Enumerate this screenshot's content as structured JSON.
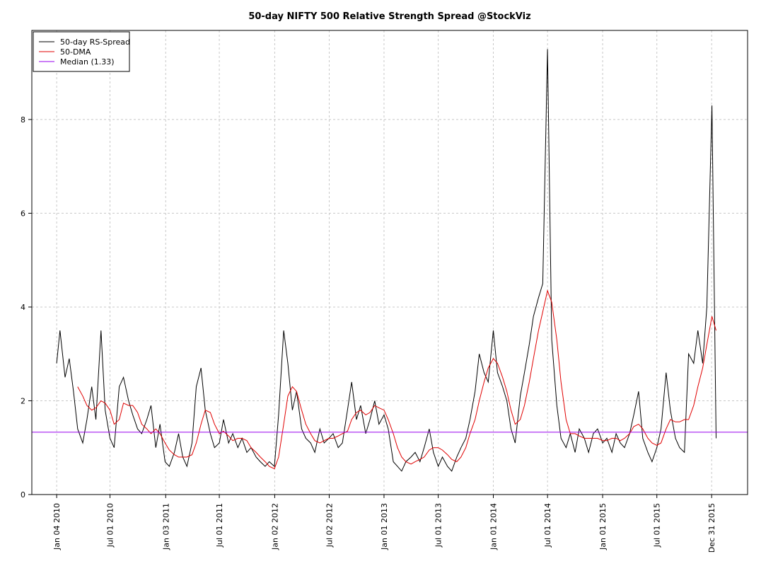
{
  "chart_data": {
    "type": "line",
    "title": "50-day NIFTY 500 Relative Strength Spread @StockViz",
    "x": [
      "2010-01-04",
      "2010-01-15",
      "2010-02-01",
      "2010-02-15",
      "2010-03-01",
      "2010-03-15",
      "2010-04-01",
      "2010-04-15",
      "2010-05-01",
      "2010-05-15",
      "2010-06-01",
      "2010-06-15",
      "2010-07-01",
      "2010-07-15",
      "2010-08-01",
      "2010-08-15",
      "2010-09-01",
      "2010-09-15",
      "2010-10-01",
      "2010-10-15",
      "2010-11-01",
      "2010-11-15",
      "2010-12-01",
      "2010-12-15",
      "2011-01-01",
      "2011-01-15",
      "2011-02-01",
      "2011-02-15",
      "2011-03-01",
      "2011-03-15",
      "2011-04-01",
      "2011-04-15",
      "2011-05-01",
      "2011-05-15",
      "2011-06-01",
      "2011-06-15",
      "2011-07-01",
      "2011-07-15",
      "2011-08-01",
      "2011-08-15",
      "2011-09-01",
      "2011-09-15",
      "2011-10-01",
      "2011-10-15",
      "2011-11-01",
      "2011-11-15",
      "2011-12-01",
      "2011-12-15",
      "2012-01-01",
      "2012-01-15",
      "2012-02-01",
      "2012-02-15",
      "2012-03-01",
      "2012-03-15",
      "2012-04-01",
      "2012-04-15",
      "2012-05-01",
      "2012-05-15",
      "2012-06-01",
      "2012-06-15",
      "2012-07-01",
      "2012-07-15",
      "2012-08-01",
      "2012-08-15",
      "2012-09-01",
      "2012-09-15",
      "2012-10-01",
      "2012-10-15",
      "2012-11-01",
      "2012-11-15",
      "2012-12-01",
      "2012-12-15",
      "2013-01-01",
      "2013-01-15",
      "2013-02-01",
      "2013-02-15",
      "2013-03-01",
      "2013-03-15",
      "2013-04-01",
      "2013-04-15",
      "2013-05-01",
      "2013-05-15",
      "2013-06-01",
      "2013-06-15",
      "2013-07-01",
      "2013-07-15",
      "2013-08-01",
      "2013-08-15",
      "2013-09-01",
      "2013-09-15",
      "2013-10-01",
      "2013-10-15",
      "2013-11-01",
      "2013-11-15",
      "2013-12-01",
      "2013-12-15",
      "2014-01-01",
      "2014-01-15",
      "2014-02-01",
      "2014-02-15",
      "2014-03-01",
      "2014-03-15",
      "2014-04-01",
      "2014-04-15",
      "2014-05-01",
      "2014-05-15",
      "2014-06-01",
      "2014-06-15",
      "2014-07-01",
      "2014-07-15",
      "2014-08-01",
      "2014-08-15",
      "2014-09-01",
      "2014-09-15",
      "2014-10-01",
      "2014-10-15",
      "2014-11-01",
      "2014-11-15",
      "2014-12-01",
      "2014-12-15",
      "2015-01-01",
      "2015-01-15",
      "2015-02-01",
      "2015-02-15",
      "2015-03-01",
      "2015-03-15",
      "2015-04-01",
      "2015-04-15",
      "2015-05-01",
      "2015-05-15",
      "2015-06-01",
      "2015-06-15",
      "2015-07-01",
      "2015-07-15",
      "2015-08-01",
      "2015-08-15",
      "2015-09-01",
      "2015-09-15",
      "2015-10-01",
      "2015-10-15",
      "2015-11-01",
      "2015-11-15",
      "2015-12-01",
      "2015-12-15",
      "2016-01-01",
      "2016-01-15"
    ],
    "series": [
      {
        "name": "50-day RS-Spread",
        "color": "#000000",
        "values": [
          2.8,
          3.5,
          2.5,
          2.9,
          2.2,
          1.4,
          1.1,
          1.6,
          2.3,
          1.6,
          3.5,
          1.8,
          1.2,
          1.0,
          2.3,
          2.5,
          2.0,
          1.7,
          1.4,
          1.3,
          1.6,
          1.9,
          1.0,
          1.5,
          0.7,
          0.6,
          0.9,
          1.3,
          0.8,
          0.6,
          1.1,
          2.3,
          2.7,
          1.8,
          1.3,
          1.0,
          1.1,
          1.6,
          1.1,
          1.3,
          1.0,
          1.2,
          0.9,
          1.0,
          0.8,
          0.7,
          0.6,
          0.7,
          0.6,
          1.7,
          3.5,
          2.8,
          1.8,
          2.2,
          1.4,
          1.2,
          1.1,
          0.9,
          1.4,
          1.1,
          1.2,
          1.3,
          1.0,
          1.1,
          1.8,
          2.4,
          1.6,
          1.9,
          1.3,
          1.6,
          2.0,
          1.5,
          1.7,
          1.4,
          0.7,
          0.6,
          0.5,
          0.7,
          0.8,
          0.9,
          0.7,
          1.0,
          1.4,
          0.9,
          0.6,
          0.8,
          0.6,
          0.5,
          0.8,
          1.0,
          1.2,
          1.6,
          2.2,
          3.0,
          2.6,
          2.4,
          3.5,
          2.6,
          2.3,
          2.0,
          1.4,
          1.1,
          2.1,
          2.6,
          3.2,
          3.8,
          4.2,
          4.5,
          9.5,
          3.3,
          1.9,
          1.2,
          1.0,
          1.3,
          0.9,
          1.4,
          1.2,
          0.9,
          1.3,
          1.4,
          1.1,
          1.2,
          0.9,
          1.3,
          1.1,
          1.0,
          1.3,
          1.7,
          2.2,
          1.2,
          0.9,
          0.7,
          1.0,
          1.4,
          2.6,
          1.8,
          1.2,
          1.0,
          0.9,
          3.0,
          2.8,
          3.5,
          2.8,
          4.0,
          8.3,
          1.2
        ]
      },
      {
        "name": "50-DMA",
        "color": "#e00000",
        "values": [
          null,
          null,
          null,
          null,
          null,
          2.3,
          2.1,
          1.9,
          1.8,
          1.85,
          2.0,
          1.95,
          1.8,
          1.5,
          1.6,
          1.95,
          1.9,
          1.9,
          1.75,
          1.5,
          1.4,
          1.3,
          1.4,
          1.3,
          1.1,
          0.95,
          0.85,
          0.8,
          0.8,
          0.8,
          0.85,
          1.1,
          1.5,
          1.8,
          1.75,
          1.5,
          1.3,
          1.35,
          1.25,
          1.15,
          1.2,
          1.2,
          1.15,
          1.0,
          0.9,
          0.8,
          0.7,
          0.6,
          0.55,
          0.8,
          1.5,
          2.1,
          2.3,
          2.2,
          1.8,
          1.5,
          1.3,
          1.15,
          1.1,
          1.15,
          1.2,
          1.2,
          1.25,
          1.3,
          1.35,
          1.6,
          1.75,
          1.8,
          1.7,
          1.75,
          1.9,
          1.85,
          1.8,
          1.6,
          1.3,
          1.0,
          0.8,
          0.7,
          0.65,
          0.7,
          0.75,
          0.8,
          0.95,
          1.0,
          1.0,
          0.95,
          0.85,
          0.75,
          0.7,
          0.8,
          1.0,
          1.3,
          1.6,
          2.0,
          2.4,
          2.7,
          2.9,
          2.8,
          2.5,
          2.2,
          1.8,
          1.5,
          1.6,
          1.9,
          2.4,
          2.9,
          3.5,
          3.9,
          4.35,
          4.1,
          3.3,
          2.4,
          1.6,
          1.3,
          1.3,
          1.25,
          1.2,
          1.2,
          1.2,
          1.2,
          1.15,
          1.15,
          1.2,
          1.2,
          1.15,
          1.2,
          1.3,
          1.45,
          1.5,
          1.4,
          1.2,
          1.1,
          1.05,
          1.1,
          1.4,
          1.6,
          1.55,
          1.55,
          1.6,
          1.6,
          1.9,
          2.3,
          2.7,
          3.2,
          3.8,
          3.5
        ]
      }
    ],
    "median": {
      "name": "Median (1.33)",
      "color": "#9900ee",
      "value": 1.33
    },
    "xlim": [
      "2009-10-13",
      "2016-04-29"
    ],
    "xticks": [
      {
        "value": "2010-01-04",
        "label": "Jan 04 2010"
      },
      {
        "value": "2010-07-01",
        "label": "Jul 01 2010"
      },
      {
        "value": "2011-01-03",
        "label": "Jan 03 2011"
      },
      {
        "value": "2011-07-01",
        "label": "Jul 01 2011"
      },
      {
        "value": "2012-01-02",
        "label": "Jan 02 2012"
      },
      {
        "value": "2012-07-02",
        "label": "Jul 02 2012"
      },
      {
        "value": "2013-01-01",
        "label": "Jan 01 2013"
      },
      {
        "value": "2013-07-01",
        "label": "Jul 01 2013"
      },
      {
        "value": "2014-01-01",
        "label": "Jan 01 2014"
      },
      {
        "value": "2014-07-01",
        "label": "Jul 01 2014"
      },
      {
        "value": "2015-01-01",
        "label": "Jan 01 2015"
      },
      {
        "value": "2015-07-01",
        "label": "Jul 01 2015"
      },
      {
        "value": "2015-12-31",
        "label": "Dec 31 2015"
      }
    ],
    "ylim": [
      0,
      9.9
    ],
    "yticks": [
      0,
      2,
      4,
      6,
      8
    ],
    "grid": true,
    "legend": "top-left"
  }
}
